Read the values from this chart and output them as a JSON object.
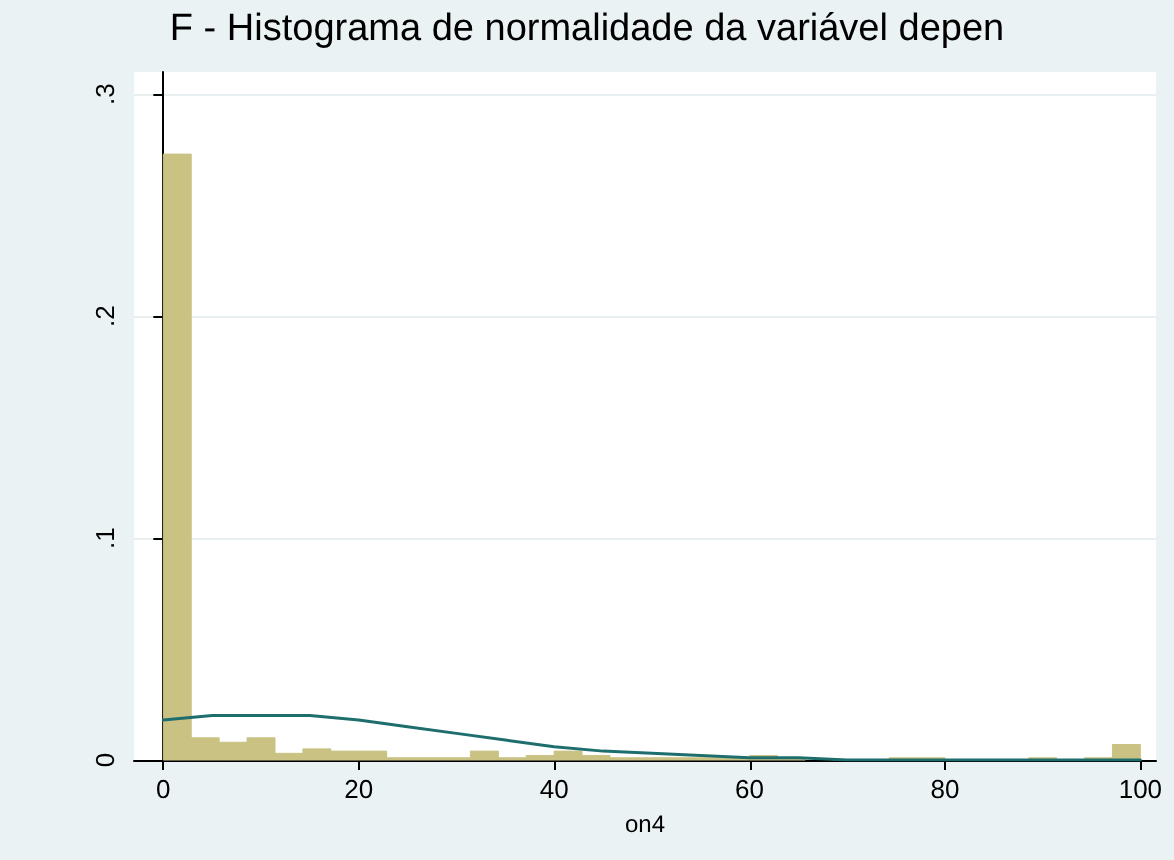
{
  "chart_data": {
    "type": "histogram",
    "title": "F - Histograma de normalidade da variável depen",
    "xlabel": "on4",
    "bins": [
      0,
      2.857,
      5.714,
      8.571,
      11.429,
      14.286,
      17.143,
      20,
      22.857,
      25.714,
      28.571,
      31.429,
      34.286,
      37.143,
      40,
      42.857,
      45.714,
      48.571,
      51.429,
      54.286,
      57.143,
      60,
      62.857,
      65.714,
      68.571,
      71.429,
      74.286,
      77.143,
      80,
      82.857,
      85.714,
      88.571,
      91.429,
      94.286,
      97.143,
      100
    ],
    "series": [
      {
        "color": "#c9c283",
        "values": [
          0.273,
          0.01,
          0.008,
          0.01,
          0.003,
          0.005,
          0.004,
          0.004,
          0.001,
          0.001,
          0.001,
          0.004,
          0.001,
          0.002,
          0.004,
          0.002,
          0.001,
          0.001,
          0.001,
          0.001,
          0.001,
          0.002,
          0.001,
          null,
          0,
          0,
          0.001,
          0.001,
          0,
          0,
          0,
          0.001,
          0,
          0.001,
          0.007
        ]
      },
      {
        "type": "line",
        "color": "#1f6e6e",
        "x": [
          0,
          5,
          10,
          15,
          20,
          25,
          30,
          35,
          40,
          45,
          50,
          55,
          60,
          65,
          70,
          75,
          80,
          85,
          90,
          95,
          100
        ],
        "values": [
          0.018,
          0.02,
          0.02,
          0.02,
          0.018,
          0.015,
          0.012,
          0.009,
          0.006,
          0.004,
          0.003,
          0.002,
          0.001,
          0.001,
          0,
          0,
          0,
          0,
          0,
          0,
          0
        ]
      }
    ],
    "xlim": [
      -3,
      101.6
    ],
    "xticks": [
      0,
      20,
      40,
      60,
      80,
      100
    ],
    "ylim": [
      0,
      0.31
    ],
    "yticks": [
      {
        "value": 0,
        "label": "0"
      },
      {
        "value": 0.1,
        "label": ".1"
      },
      {
        "value": 0.2,
        "label": ".2"
      },
      {
        "value": 0.3,
        "label": ".3"
      }
    ],
    "grid": "y",
    "marker": "none",
    "line_style": "solid"
  }
}
